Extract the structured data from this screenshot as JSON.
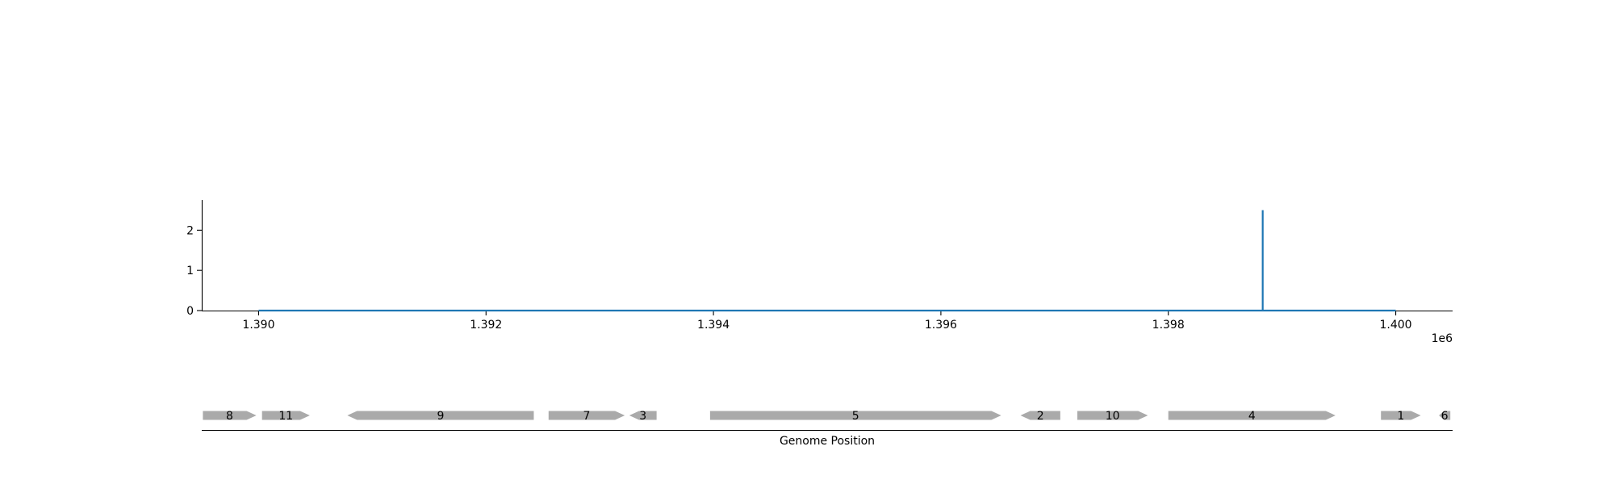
{
  "chart_data": [
    {
      "type": "line",
      "x": [
        1390000,
        1398830,
        1398830,
        1398830,
        1398840,
        1400000
      ],
      "series": [
        {
          "values": [
            0,
            0,
            2.5,
            0,
            0,
            0
          ]
        }
      ],
      "xlim": [
        1389500,
        1400500
      ],
      "ylim": [
        0,
        2.75
      ],
      "xticks": [
        1390000,
        1392000,
        1394000,
        1396000,
        1398000,
        1400000
      ],
      "xtick_labels": [
        "1.390",
        "1.392",
        "1.394",
        "1.396",
        "1.398",
        "1.400"
      ],
      "yticks": [
        0,
        1,
        2
      ],
      "ytick_labels": [
        "0",
        "1",
        "2"
      ],
      "x_offset_label": "1e6",
      "line_color": "#1f77b4",
      "grid": false
    },
    {
      "type": "gene_track",
      "xlabel": "Genome Position",
      "xlim": [
        1389500,
        1400500
      ],
      "feature_color": "#aaaaaa",
      "features": [
        {
          "label": "8",
          "start": 1389510,
          "end": 1389980,
          "strand": 1
        },
        {
          "label": "11",
          "start": 1390030,
          "end": 1390450,
          "strand": 1
        },
        {
          "label": "9",
          "start": 1390780,
          "end": 1392420,
          "strand": -1
        },
        {
          "label": "7",
          "start": 1392550,
          "end": 1393220,
          "strand": 1
        },
        {
          "label": "3",
          "start": 1393260,
          "end": 1393500,
          "strand": -1
        },
        {
          "label": "5",
          "start": 1393970,
          "end": 1396530,
          "strand": 1
        },
        {
          "label": "2",
          "start": 1396700,
          "end": 1397050,
          "strand": -1
        },
        {
          "label": "10",
          "start": 1397200,
          "end": 1397820,
          "strand": 1
        },
        {
          "label": "4",
          "start": 1398000,
          "end": 1399470,
          "strand": 1
        },
        {
          "label": "1",
          "start": 1399870,
          "end": 1400220,
          "strand": 1
        },
        {
          "label": "6",
          "start": 1400380,
          "end": 1400480,
          "strand": -1
        }
      ]
    }
  ]
}
